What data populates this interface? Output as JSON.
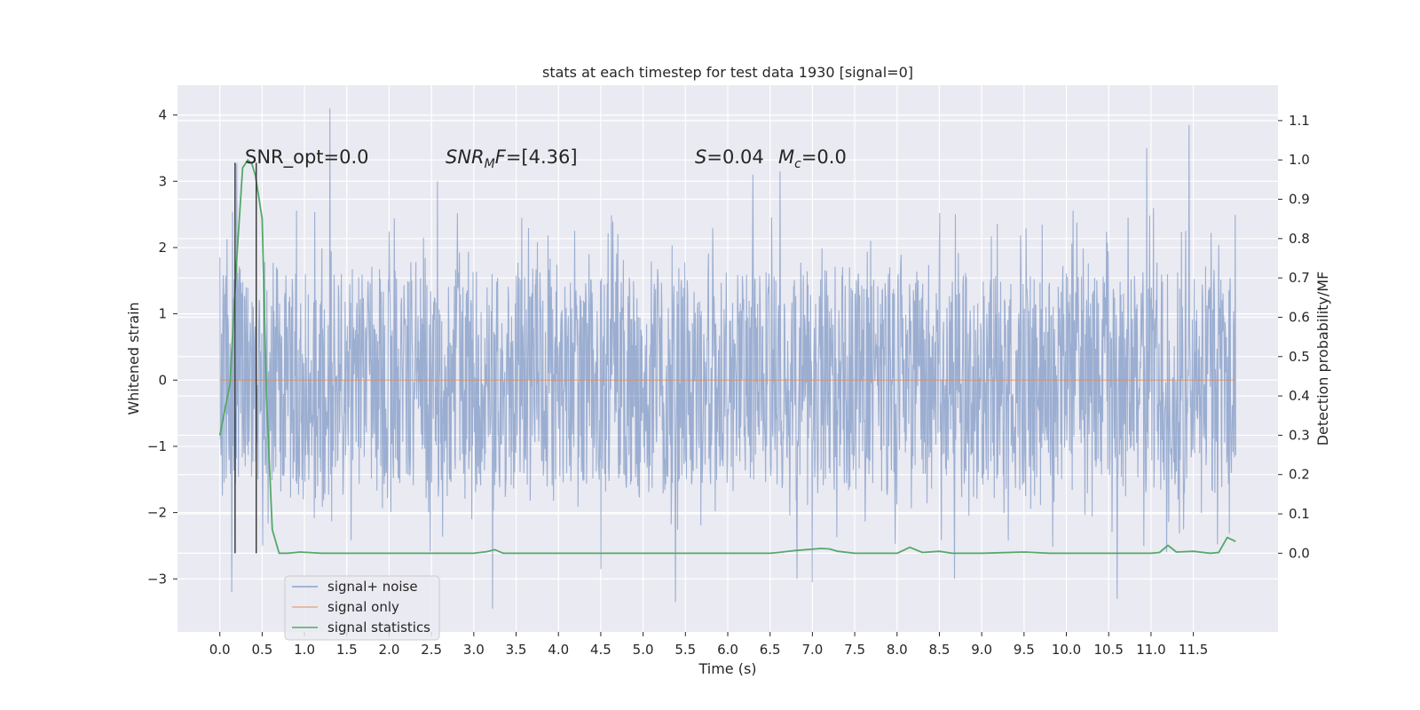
{
  "chart_data": {
    "type": "line",
    "title": "stats at each timestep for test data 1930 [signal=0]",
    "xlabel": "Time (s)",
    "ylabel_left": "Whitened strain",
    "ylabel_right": "Detection probability/MF",
    "xlim": [
      -0.5,
      12.5
    ],
    "ylim_left": [
      -3.8,
      4.45
    ],
    "ylim_right": [
      -0.2,
      1.19
    ],
    "x_ticks": [
      "0.0",
      "0.5",
      "1.0",
      "1.5",
      "2.0",
      "2.5",
      "3.0",
      "3.5",
      "4.0",
      "4.5",
      "5.0",
      "5.5",
      "6.0",
      "6.5",
      "7.0",
      "7.5",
      "8.0",
      "8.5",
      "9.0",
      "9.5",
      "10.0",
      "10.5",
      "11.0",
      "11.5"
    ],
    "y_ticks_left": [
      "4",
      "3",
      "2",
      "1",
      "0",
      "−1",
      "−2",
      "−3"
    ],
    "y_ticks_right": [
      "1.1",
      "1.0",
      "0.9",
      "0.8",
      "0.7",
      "0.6",
      "0.5",
      "0.4",
      "0.3",
      "0.2",
      "0.1",
      "0.0"
    ],
    "grid": true,
    "legend_position": "lower-left",
    "annotations": {
      "snr_opt": "SNR_opt=0.0",
      "snr_mf_base": "SNR",
      "snr_mf_sub": "M",
      "snr_mf_rest": "F=[4.36]",
      "s_var": "S",
      "s_rest": "=0.04",
      "mc_var": "M",
      "mc_sub": "c",
      "mc_rest": "=0.0"
    },
    "series": [
      {
        "name": "signal+ noise",
        "color": "#4c72b0",
        "axis": "left",
        "time_range": [
          0.0,
          12.0
        ],
        "envelope": {
          "typical_low": -1.5,
          "typical_high": 1.5
        },
        "peaks": [
          {
            "x": 1.3,
            "y": 4.1
          },
          {
            "x": 11.45,
            "y": 3.85
          },
          {
            "x": 10.95,
            "y": 3.5
          },
          {
            "x": 2.57,
            "y": 3.0
          },
          {
            "x": 0.2,
            "y": 3.27
          },
          {
            "x": 6.3,
            "y": 3.1
          },
          {
            "x": 6.62,
            "y": 3.15
          },
          {
            "x": 0.14,
            "y": -3.2
          },
          {
            "x": 5.38,
            "y": -3.35
          },
          {
            "x": 3.22,
            "y": -3.45
          },
          {
            "x": 10.6,
            "y": -3.3
          },
          {
            "x": 8.68,
            "y": -3.0
          },
          {
            "x": 6.82,
            "y": -3.0
          },
          {
            "x": 7.0,
            "y": -3.05
          },
          {
            "x": 4.5,
            "y": -2.85
          }
        ]
      },
      {
        "name": "signal only",
        "color": "#dd8452",
        "axis": "left",
        "x": [
          0.0,
          12.0
        ],
        "y": [
          0.0,
          0.0
        ]
      },
      {
        "name": "signal statistics",
        "color": "#55a868",
        "axis": "right",
        "x": [
          0.0,
          0.12,
          0.2,
          0.27,
          0.33,
          0.38,
          0.42,
          0.5,
          0.55,
          0.62,
          0.7,
          0.75,
          0.8,
          0.95,
          1.2,
          2.0,
          3.0,
          3.15,
          3.25,
          3.35,
          3.6,
          4.5,
          5.0,
          5.6,
          6.5,
          6.6,
          6.8,
          7.1,
          7.2,
          7.3,
          7.5,
          8.0,
          8.15,
          8.3,
          8.5,
          8.65,
          9.0,
          9.5,
          9.8,
          10.5,
          11.0,
          11.1,
          11.2,
          11.3,
          11.5,
          11.7,
          11.8,
          11.9,
          12.0
        ],
        "y": [
          0.3,
          0.43,
          0.75,
          0.98,
          1.0,
          0.99,
          0.96,
          0.85,
          0.4,
          0.06,
          0.0,
          0.0,
          0.0,
          0.003,
          0.0,
          0.0,
          0.0,
          0.004,
          0.009,
          0.0,
          0.0,
          0.0,
          0.0,
          0.0,
          0.0,
          0.002,
          0.007,
          0.012,
          0.011,
          0.005,
          0.0,
          0.0,
          0.015,
          0.002,
          0.005,
          0.0,
          0.0,
          0.003,
          0.0,
          0.0,
          0.0,
          0.002,
          0.02,
          0.003,
          0.005,
          0.0,
          0.002,
          0.04,
          0.03
        ]
      }
    ],
    "markers": [
      {
        "x": 0.18,
        "y_left_top": 3.28,
        "y_right_bottom": 0.0
      },
      {
        "x": 0.43,
        "y_left_top": 3.28,
        "y_right_bottom": 0.0
      }
    ]
  },
  "legend": {
    "items": [
      {
        "label": "signal+ noise",
        "color": "#4c72b0"
      },
      {
        "label": "signal only",
        "color": "#dd8452"
      },
      {
        "label": "signal statistics",
        "color": "#55a868"
      }
    ]
  }
}
